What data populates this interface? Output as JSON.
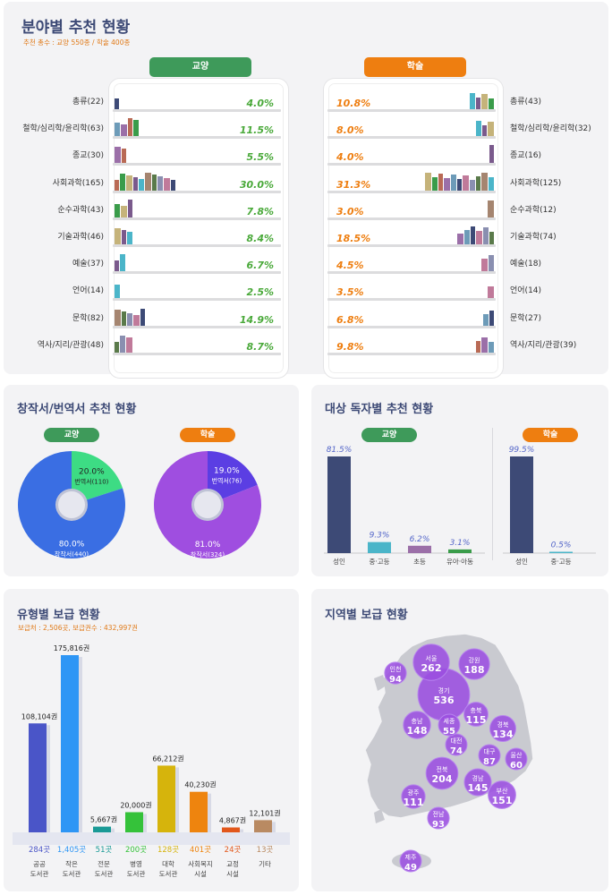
{
  "fields": {
    "title": "분야별 추천 현황",
    "subtitle": "추천 총수 : 교양 550종 / 학술 400종",
    "left_tag": "교양",
    "right_tag": "학술",
    "left_color": "#3e9a5a",
    "right_color": "#ee7e10"
  },
  "translation": {
    "title": "창작서/번역서 추천 현황",
    "left_tag": "교양",
    "right_tag": "학술"
  },
  "audience": {
    "title": "대상 독자별 추천 현황",
    "left_tag": "교양",
    "right_tag": "학술"
  },
  "types": {
    "title": "유형별 보급 현황",
    "subtitle": "보급처 : 2,506곳, 보급권수 : 432,997권"
  },
  "regions": {
    "title": "지역별 보급 현황"
  },
  "chart_data": [
    {
      "type": "bar",
      "title": "분야별 추천 현황",
      "categories_left": [
        "총류(22)",
        "철학/심리학/윤리학(63)",
        "종교(30)",
        "사회과학(165)",
        "순수과학(43)",
        "기술과학(46)",
        "예술(37)",
        "언어(14)",
        "문학(82)",
        "역사/지리/관광(48)"
      ],
      "categories_right": [
        "총류(43)",
        "철학/심리학/윤리학(32)",
        "종교(16)",
        "사회과학(125)",
        "순수과학(12)",
        "기술과학(74)",
        "예술(18)",
        "언어(14)",
        "문학(27)",
        "역사/지리/관광(39)"
      ],
      "series": [
        {
          "name": "교양",
          "values": [
            4.0,
            11.5,
            5.5,
            30.0,
            7.8,
            8.4,
            6.7,
            2.5,
            14.9,
            8.7
          ],
          "labels": [
            "4.0%",
            "11.5%",
            "5.5%",
            "30.0%",
            "7.8%",
            "8.4%",
            "6.7%",
            "2.5%",
            "14.9%",
            "8.7%"
          ]
        },
        {
          "name": "학술",
          "values": [
            10.8,
            8.0,
            4.0,
            31.3,
            3.0,
            18.5,
            4.5,
            3.5,
            6.8,
            9.8
          ],
          "labels": [
            "10.8%",
            "8.0%",
            "4.0%",
            "31.3%",
            "3.0%",
            "18.5%",
            "4.5%",
            "3.5%",
            "6.8%",
            "9.8%"
          ]
        }
      ]
    },
    {
      "type": "pie",
      "title": "창작서/번역서 추천 현황",
      "charts": [
        {
          "name": "교양",
          "slices": [
            {
              "label": "번역서(110)",
              "pct": "20.0%",
              "value": 20.0,
              "color": "#3ddc84"
            },
            {
              "label": "창작서(440)",
              "pct": "80.0%",
              "value": 80.0,
              "color": "#3a6ee3"
            }
          ]
        },
        {
          "name": "학술",
          "slices": [
            {
              "label": "번역서(76)",
              "pct": "19.0%",
              "value": 19.0,
              "color": "#5b3ee3"
            },
            {
              "label": "창작서(324)",
              "pct": "81.0%",
              "value": 81.0,
              "color": "#9f4ee0"
            }
          ]
        }
      ]
    },
    {
      "type": "bar",
      "title": "대상 독자별 추천 현황",
      "groups": [
        {
          "name": "교양",
          "categories": [
            "성인",
            "중·고등",
            "초등",
            "유아·아동"
          ],
          "values": [
            81.5,
            9.3,
            6.2,
            3.1
          ],
          "labels": [
            "81.5%",
            "9.3%",
            "6.2%",
            "3.1%"
          ],
          "colors": [
            "#3d4a76",
            "#4bb5c9",
            "#9b6fa8",
            "#3a9c4a"
          ]
        },
        {
          "name": "학술",
          "categories": [
            "성인",
            "중·고등"
          ],
          "values": [
            99.5,
            0.5
          ],
          "labels": [
            "99.5%",
            "0.5%"
          ],
          "colors": [
            "#3d4a76",
            "#4bb5c9"
          ]
        }
      ]
    },
    {
      "type": "bar",
      "title": "유형별 보급 현황",
      "categories": [
        "공공\n도서관",
        "작은\n도서관",
        "전문\n도서관",
        "병영\n도서관",
        "대학\n도서관",
        "사회복지\n시설",
        "교정\n시설",
        "기타"
      ],
      "values": [
        108104,
        175816,
        5667,
        20000,
        66212,
        40230,
        4867,
        12101
      ],
      "labels": [
        "108,104권",
        "175,816권",
        "5,667권",
        "20,000권",
        "66,212권",
        "40,230권",
        "4,867권",
        "12,101권"
      ],
      "counts": [
        "284곳",
        "1,405곳",
        "51곳",
        "200곳",
        "128곳",
        "401곳",
        "24곳",
        "13곳"
      ],
      "colors": [
        "#4a55c8",
        "#2e96f5",
        "#1a9a96",
        "#35c23a",
        "#d6b40c",
        "#ee840e",
        "#e2571b",
        "#b98a62"
      ]
    },
    {
      "type": "map",
      "title": "지역별 보급 현황",
      "regions": [
        {
          "name": "인천",
          "value": 94
        },
        {
          "name": "서울",
          "value": 262
        },
        {
          "name": "강원",
          "value": 188
        },
        {
          "name": "경기",
          "value": 536
        },
        {
          "name": "충북",
          "value": 115
        },
        {
          "name": "충남",
          "value": 148
        },
        {
          "name": "세종",
          "value": 55
        },
        {
          "name": "경북",
          "value": 134
        },
        {
          "name": "대전",
          "value": 74
        },
        {
          "name": "대구",
          "value": 87
        },
        {
          "name": "울산",
          "value": 60
        },
        {
          "name": "전북",
          "value": 204
        },
        {
          "name": "경남",
          "value": 145
        },
        {
          "name": "부산",
          "value": 151
        },
        {
          "name": "광주",
          "value": 111
        },
        {
          "name": "전남",
          "value": 93
        },
        {
          "name": "제주",
          "value": 49
        }
      ]
    }
  ]
}
